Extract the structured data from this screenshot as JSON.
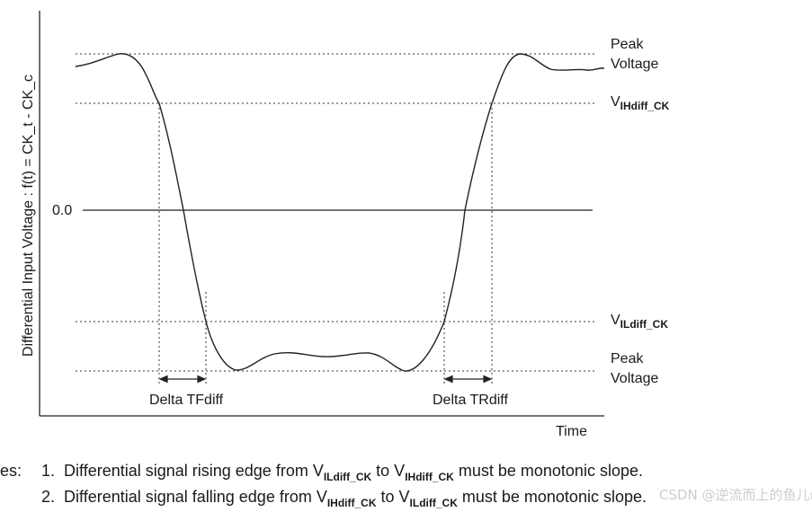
{
  "diagram": {
    "y_axis_label": "Differential Input Voltage : f(t) = CK_t - CK_c",
    "x_axis_label": "Time",
    "zero_label": "0.0",
    "levels": [
      {
        "id": "peak-top",
        "line1": "Peak",
        "line2": "Voltage"
      },
      {
        "id": "vih",
        "main": "V",
        "sub": "IHdiff_CK"
      },
      {
        "id": "vil",
        "main": "V",
        "sub": "ILdiff_CK"
      },
      {
        "id": "peak-bottom",
        "line1": "Peak",
        "line2": "Voltage"
      }
    ],
    "delta_labels": {
      "fall": "Delta TFdiff",
      "rise": "Delta TRdiff"
    }
  },
  "notes": {
    "prefix": "es:",
    "items": [
      {
        "num": "1.",
        "t1": "Differential signal rising edge from V",
        "s1": "ILdiff_CK",
        "t2": " to V",
        "s2": "IHdiff_CK",
        "t3": " must be monotonic slope."
      },
      {
        "num": "2.",
        "t1": "Differential signal falling edge from V",
        "s1": "IHdiff_CK",
        "t2": " to V",
        "s2": "ILdiff_CK",
        "t3": " must be monotonic slope."
      }
    ]
  },
  "watermark": "CSDN @逆流而上的鱼儿@"
}
